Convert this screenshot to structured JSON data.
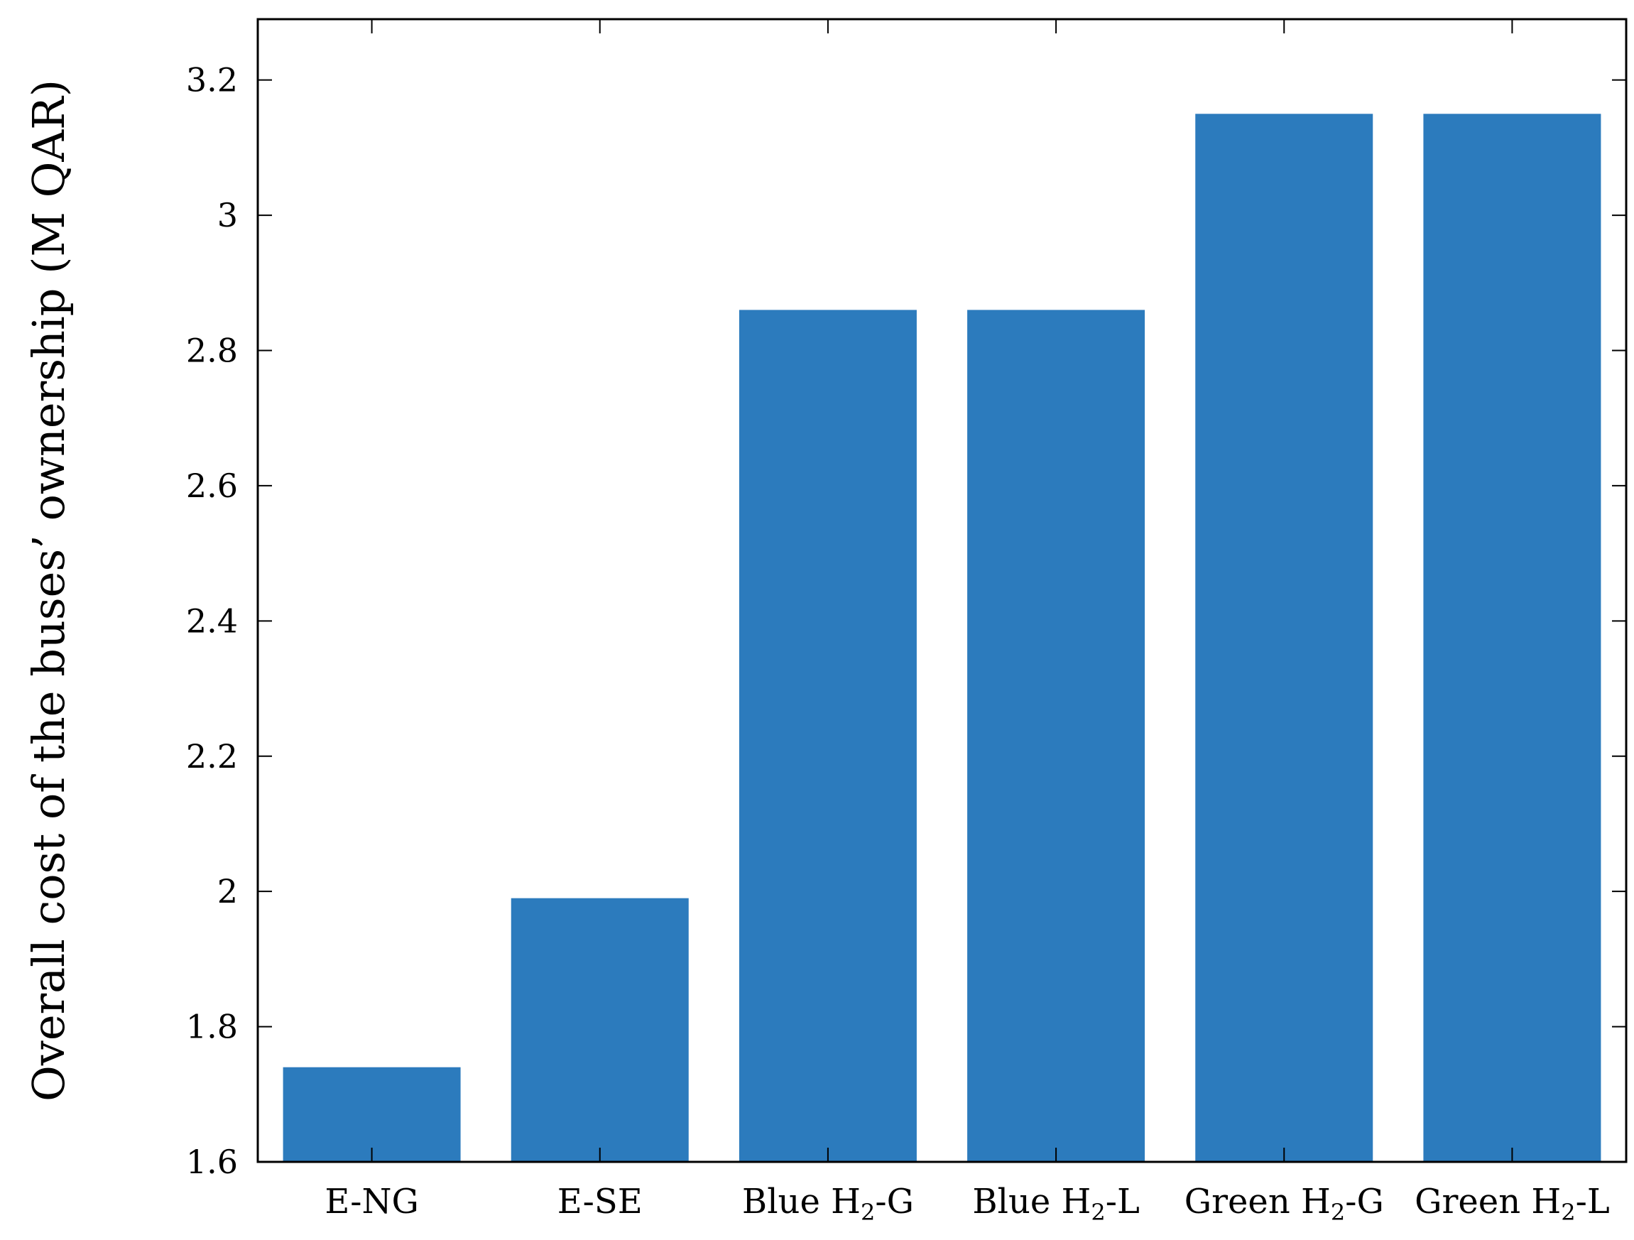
{
  "chart_data": {
    "type": "bar",
    "categories": [
      "E-NG",
      "E-SE",
      "Blue H2-G",
      "Blue H2-L",
      "Green H2-G",
      "Green H2-L"
    ],
    "category_labels": [
      {
        "main": "E-NG",
        "sub": "",
        "tail": ""
      },
      {
        "main": "E-SE",
        "sub": "",
        "tail": ""
      },
      {
        "main": "Blue H",
        "sub": "2",
        "tail": "-G"
      },
      {
        "main": "Blue H",
        "sub": "2",
        "tail": "-L"
      },
      {
        "main": "Green H",
        "sub": "2",
        "tail": "-G"
      },
      {
        "main": "Green H",
        "sub": "2",
        "tail": "-L"
      }
    ],
    "values": [
      1.74,
      1.99,
      2.86,
      2.86,
      3.15,
      3.15
    ],
    "title": "",
    "xlabel": "",
    "ylabel": "Overall cost of the buses’ ownership (M QAR)",
    "ylim": [
      1.6,
      3.29
    ],
    "yticks": [
      1.6,
      1.8,
      2.0,
      2.2,
      2.4,
      2.6,
      2.8,
      3.0,
      3.2
    ],
    "ytick_labels": [
      "1.6",
      "1.8",
      "2",
      "2.2",
      "2.4",
      "2.6",
      "2.8",
      "3",
      "3.2"
    ],
    "grid": false,
    "bar_color": "#2c7bbd"
  }
}
